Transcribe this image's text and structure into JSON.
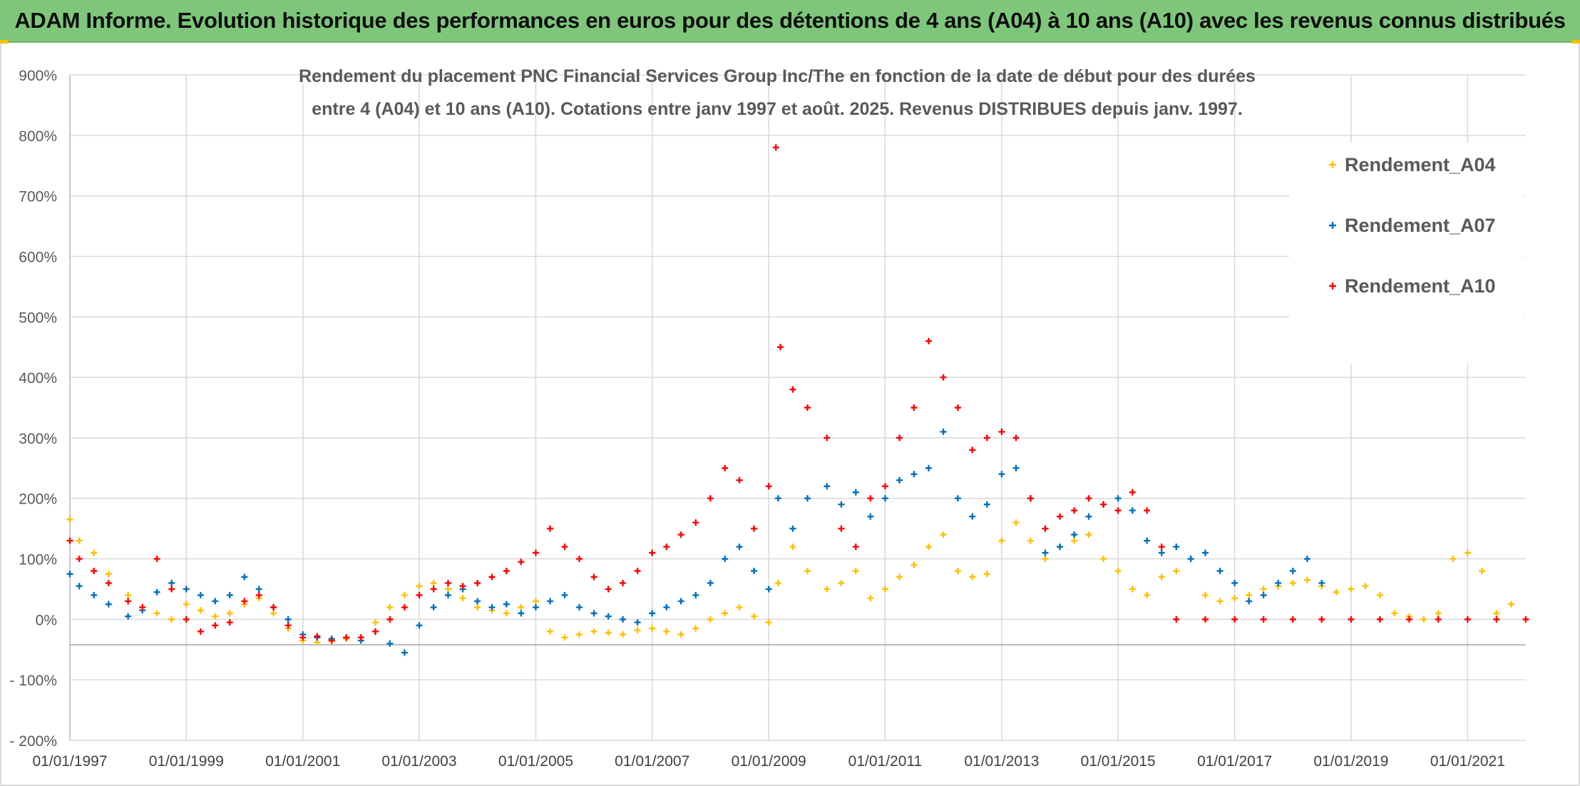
{
  "banner": {
    "title": "ADAM Informe. Evolution historique des performances en euros pour des détentions de 4 ans (A04) à 10 ans (A10) avec les revenus connus distribués"
  },
  "colors": {
    "banner": "#7ec77a",
    "A04": "#ffc000",
    "A07": "#0070c0",
    "A10": "#ff0000",
    "grid": "#d9d9d9"
  },
  "chart_data": {
    "type": "scatter",
    "marker": "plus",
    "title_lines": [
      "Rendement du placement PNC Financial Services Group Inc/The en fonction de la date de début pour des durées",
      "entre 4 (A04) et 10 ans (A10). Cotations entre janv 1997 et août. 2025. Revenus DISTRIBUES depuis janv. 1997."
    ],
    "xlabel": "",
    "ylabel": "",
    "x_type": "date",
    "xlim": [
      "1997-01-01",
      "2022-01-01"
    ],
    "x_ticks": [
      "01/01/1997",
      "01/01/1999",
      "01/01/2001",
      "01/01/2003",
      "01/01/2005",
      "01/01/2007",
      "01/01/2009",
      "01/01/2011",
      "01/01/2013",
      "01/01/2015",
      "01/01/2017",
      "01/01/2019",
      "01/01/2021"
    ],
    "ylim": [
      -200,
      900
    ],
    "y_ticks": [
      "900%",
      "800%",
      "700%",
      "600%",
      "500%",
      "400%",
      "300%",
      "200%",
      "100%",
      "0%",
      "- 100%",
      "- 200%"
    ],
    "grid": true,
    "legend_position": "top-right",
    "series": [
      {
        "name": "Rendement_A04",
        "color": "#ffc000",
        "x": [
          "1997-01-01",
          "1997-03-01",
          "1997-06-01",
          "1997-09-01",
          "1998-01-01",
          "1998-04-01",
          "1998-07-01",
          "1998-10-01",
          "1999-01-01",
          "1999-04-01",
          "1999-07-01",
          "1999-10-01",
          "2000-01-01",
          "2000-04-01",
          "2000-07-01",
          "2000-10-01",
          "2001-01-01",
          "2001-04-01",
          "2001-07-01",
          "2001-10-01",
          "2002-01-01",
          "2002-04-01",
          "2002-07-01",
          "2002-10-01",
          "2003-01-01",
          "2003-04-01",
          "2003-07-01",
          "2003-10-01",
          "2004-01-01",
          "2004-04-01",
          "2004-07-01",
          "2004-10-01",
          "2005-01-01",
          "2005-04-01",
          "2005-07-01",
          "2005-10-01",
          "2006-01-01",
          "2006-04-01",
          "2006-07-01",
          "2006-10-01",
          "2007-01-01",
          "2007-04-01",
          "2007-07-01",
          "2007-10-01",
          "2008-01-01",
          "2008-04-01",
          "2008-07-01",
          "2008-10-01",
          "2009-01-01",
          "2009-03-01",
          "2009-06-01",
          "2009-09-01",
          "2010-01-01",
          "2010-04-01",
          "2010-07-01",
          "2010-10-01",
          "2011-01-01",
          "2011-04-01",
          "2011-07-01",
          "2011-10-01",
          "2012-01-01",
          "2012-04-01",
          "2012-07-01",
          "2012-10-01",
          "2013-01-01",
          "2013-04-01",
          "2013-07-01",
          "2013-10-01",
          "2014-01-01",
          "2014-04-01",
          "2014-07-01",
          "2014-10-01",
          "2015-01-01",
          "2015-04-01",
          "2015-07-01",
          "2015-10-01",
          "2016-01-01",
          "2016-04-01",
          "2016-07-01",
          "2016-10-01",
          "2017-01-01",
          "2017-04-01",
          "2017-07-01",
          "2017-10-01",
          "2018-01-01",
          "2018-04-01",
          "2018-07-01",
          "2018-10-01",
          "2019-01-01",
          "2019-04-01",
          "2019-07-01",
          "2019-10-01",
          "2020-01-01",
          "2020-04-01",
          "2020-07-01",
          "2020-10-01",
          "2021-01-01",
          "2021-04-01",
          "2021-07-01",
          "2021-10-01"
        ],
        "y": [
          165,
          130,
          110,
          75,
          40,
          20,
          10,
          0,
          25,
          15,
          5,
          10,
          25,
          35,
          10,
          -15,
          -35,
          -38,
          -36,
          -32,
          -30,
          -5,
          20,
          40,
          55,
          60,
          50,
          35,
          20,
          15,
          10,
          20,
          30,
          -20,
          -30,
          -25,
          -20,
          -22,
          -25,
          -18,
          -15,
          -20,
          -25,
          -15,
          0,
          10,
          20,
          5,
          -5,
          60,
          120,
          80,
          50,
          60,
          80,
          35,
          50,
          70,
          90,
          120,
          140,
          80,
          70,
          75,
          130,
          160,
          130,
          100,
          120,
          130,
          140,
          100,
          80,
          50,
          40,
          70,
          80,
          100,
          40,
          30,
          35,
          40,
          50,
          55,
          60,
          65,
          55,
          45,
          50,
          55,
          40,
          10,
          5,
          0,
          10,
          100,
          110,
          80,
          10,
          25
        ]
      },
      {
        "name": "Rendement_A07",
        "color": "#0070c0",
        "x": [
          "1997-01-01",
          "1997-03-01",
          "1997-06-01",
          "1997-09-01",
          "1998-01-01",
          "1998-04-01",
          "1998-07-01",
          "1998-10-01",
          "1999-01-01",
          "1999-04-01",
          "1999-07-01",
          "1999-10-01",
          "2000-01-01",
          "2000-04-01",
          "2000-07-01",
          "2000-10-01",
          "2001-01-01",
          "2001-04-01",
          "2001-07-01",
          "2001-10-01",
          "2002-01-01",
          "2002-04-01",
          "2002-07-01",
          "2002-10-01",
          "2003-01-01",
          "2003-04-01",
          "2003-07-01",
          "2003-10-01",
          "2004-01-01",
          "2004-04-01",
          "2004-07-01",
          "2004-10-01",
          "2005-01-01",
          "2005-04-01",
          "2005-07-01",
          "2005-10-01",
          "2006-01-01",
          "2006-04-01",
          "2006-07-01",
          "2006-10-01",
          "2007-01-01",
          "2007-04-01",
          "2007-07-01",
          "2007-10-01",
          "2008-01-01",
          "2008-04-01",
          "2008-07-01",
          "2008-10-01",
          "2009-01-01",
          "2009-03-01",
          "2009-06-01",
          "2009-09-01",
          "2010-01-01",
          "2010-04-01",
          "2010-07-01",
          "2010-10-01",
          "2011-01-01",
          "2011-04-01",
          "2011-07-01",
          "2011-10-01",
          "2012-01-01",
          "2012-04-01",
          "2012-07-01",
          "2012-10-01",
          "2013-01-01",
          "2013-04-01",
          "2013-07-01",
          "2013-10-01",
          "2014-01-01",
          "2014-04-01",
          "2014-07-01",
          "2014-10-01",
          "2015-01-01",
          "2015-04-01",
          "2015-07-01",
          "2015-10-01",
          "2016-01-01",
          "2016-04-01",
          "2016-07-01",
          "2016-10-01",
          "2017-01-01",
          "2017-04-01",
          "2017-07-01",
          "2017-10-01",
          "2018-01-01",
          "2018-04-01",
          "2018-07-01"
        ],
        "y": [
          75,
          55,
          40,
          25,
          5,
          15,
          45,
          60,
          50,
          40,
          30,
          40,
          70,
          50,
          20,
          0,
          -25,
          -30,
          -32,
          -30,
          -35,
          -20,
          -40,
          -55,
          -10,
          20,
          40,
          50,
          30,
          20,
          25,
          10,
          20,
          30,
          40,
          20,
          10,
          5,
          0,
          -5,
          10,
          20,
          30,
          40,
          60,
          100,
          120,
          80,
          50,
          200,
          150,
          200,
          220,
          190,
          210,
          170,
          200,
          230,
          240,
          250,
          310,
          200,
          170,
          190,
          240,
          250,
          200,
          110,
          120,
          140,
          170,
          190,
          200,
          180,
          130,
          110,
          120,
          100,
          110,
          80,
          60,
          30,
          40,
          60,
          80,
          100,
          60
        ]
      },
      {
        "name": "Rendement_A10",
        "color": "#ff0000",
        "x": [
          "1997-01-01",
          "1997-03-01",
          "1997-06-01",
          "1997-09-01",
          "1998-01-01",
          "1998-04-01",
          "1998-07-01",
          "1998-10-01",
          "1999-01-01",
          "1999-04-01",
          "1999-07-01",
          "1999-10-01",
          "2000-01-01",
          "2000-04-01",
          "2000-07-01",
          "2000-10-01",
          "2001-01-01",
          "2001-04-01",
          "2001-07-01",
          "2001-10-01",
          "2002-01-01",
          "2002-04-01",
          "2002-07-01",
          "2002-10-01",
          "2003-01-01",
          "2003-04-01",
          "2003-07-01",
          "2003-10-01",
          "2004-01-01",
          "2004-04-01",
          "2004-07-01",
          "2004-10-01",
          "2005-01-01",
          "2005-04-01",
          "2005-07-01",
          "2005-10-01",
          "2006-01-01",
          "2006-04-01",
          "2006-07-01",
          "2006-10-01",
          "2007-01-01",
          "2007-04-01",
          "2007-07-01",
          "2007-10-01",
          "2008-01-01",
          "2008-04-01",
          "2008-07-01",
          "2008-10-01",
          "2009-01-01",
          "2009-02-15",
          "2009-03-15",
          "2009-06-01",
          "2009-09-01",
          "2010-01-01",
          "2010-04-01",
          "2010-07-01",
          "2010-10-01",
          "2011-01-01",
          "2011-04-01",
          "2011-07-01",
          "2011-10-01",
          "2012-01-01",
          "2012-04-01",
          "2012-07-01",
          "2012-10-01",
          "2013-01-01",
          "2013-04-01",
          "2013-07-01",
          "2013-10-01",
          "2014-01-01",
          "2014-04-01",
          "2014-07-01",
          "2014-10-01",
          "2015-01-01",
          "2015-04-01",
          "2015-07-01",
          "2015-10-01",
          "2016-01-01",
          "2016-07-01",
          "2017-01-01",
          "2017-07-01",
          "2018-01-01",
          "2018-07-01",
          "2019-01-01",
          "2019-07-01",
          "2020-01-01",
          "2020-07-01",
          "2021-01-01",
          "2021-07-01",
          "2022-01-01"
        ],
        "y": [
          130,
          100,
          80,
          60,
          30,
          20,
          100,
          50,
          0,
          -20,
          -10,
          -5,
          30,
          40,
          20,
          -10,
          -30,
          -28,
          -35,
          -30,
          -30,
          -20,
          0,
          20,
          40,
          50,
          60,
          55,
          60,
          70,
          80,
          95,
          110,
          150,
          120,
          100,
          70,
          50,
          60,
          80,
          110,
          120,
          140,
          160,
          200,
          250,
          230,
          150,
          220,
          780,
          450,
          380,
          350,
          300,
          150,
          120,
          200,
          220,
          300,
          350,
          460,
          400,
          350,
          280,
          300,
          310,
          300,
          200,
          150,
          170,
          180,
          200,
          190,
          180,
          210,
          180,
          120,
          0,
          0,
          0,
          0,
          0,
          0,
          0,
          0,
          0,
          0,
          0,
          0,
          0
        ]
      }
    ]
  }
}
